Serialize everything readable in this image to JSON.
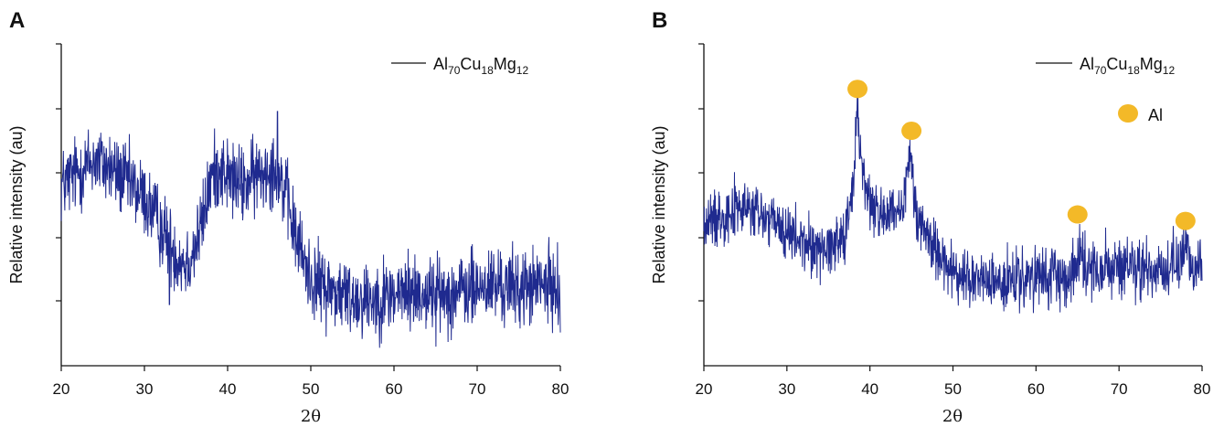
{
  "chart_data": [
    {
      "type": "line",
      "panel_label": "A",
      "xlabel": "2θ",
      "ylabel": "Relative intensity (au)",
      "xlim": [
        20,
        80
      ],
      "ylim": [
        0,
        100
      ],
      "x_ticks": [
        20,
        30,
        40,
        50,
        60,
        70,
        80
      ],
      "x_tick_labels": [
        "20",
        "30",
        "40",
        "50",
        "60",
        "70",
        "80"
      ],
      "y_tick_labels_shown": false,
      "legend": {
        "position": "top-right",
        "entries": [
          {
            "base": "Al",
            "parts": [
              [
                "70",
                "Cu"
              ],
              [
                "18",
                "Mg"
              ],
              [
                "12",
                ""
              ]
            ]
          }
        ]
      },
      "series": [
        {
          "name": "Al70Cu18Mg12",
          "color": "#1f2a8f",
          "x": [
            20,
            22,
            24,
            26,
            28,
            30,
            32,
            33,
            34,
            35,
            36,
            37,
            38,
            39,
            40,
            41,
            42,
            43,
            44,
            45,
            46,
            47,
            48,
            49,
            50,
            52,
            55,
            58,
            60,
            62,
            65,
            68,
            70,
            72,
            75,
            78,
            80
          ],
          "y": [
            56,
            60,
            64,
            61,
            57,
            52,
            43,
            38,
            34,
            32,
            36,
            45,
            58,
            62,
            59,
            57,
            56,
            58,
            60,
            62,
            61,
            53,
            42,
            34,
            27,
            24,
            21,
            21,
            22,
            23,
            22,
            23,
            24,
            25,
            24,
            25,
            24
          ]
        }
      ],
      "sharp_features": [
        {
          "x": 33.0,
          "y": 19
        },
        {
          "x": 46.0,
          "y": 79
        }
      ],
      "noise_amplitude": 6
    },
    {
      "type": "line",
      "panel_label": "B",
      "xlabel": "2θ",
      "ylabel": "Relative intensity (au)",
      "xlim": [
        20,
        80
      ],
      "ylim": [
        0,
        100
      ],
      "x_ticks": [
        20,
        30,
        40,
        50,
        60,
        70,
        80
      ],
      "x_tick_labels": [
        "20",
        "30",
        "40",
        "50",
        "60",
        "70",
        "80"
      ],
      "y_tick_labels_shown": false,
      "legend": {
        "position": "top-right",
        "entries": [
          {
            "base": "Al",
            "parts": [
              [
                "70",
                "Cu"
              ],
              [
                "18",
                "Mg"
              ],
              [
                "12",
                ""
              ]
            ]
          }
        ],
        "marker_label": "Al",
        "marker_color": "#f3b928"
      },
      "series": [
        {
          "name": "Al70Cu18Mg12",
          "color": "#1f2a8f",
          "x": [
            20,
            22,
            24,
            26,
            28,
            30,
            32,
            33,
            34,
            35,
            36,
            37,
            38,
            38.5,
            39,
            40,
            41,
            42,
            43,
            44,
            44.8,
            45.5,
            46,
            47,
            48,
            49,
            50,
            52,
            55,
            58,
            60,
            62,
            63,
            64,
            65,
            65.3,
            66,
            67,
            68,
            70,
            72,
            74,
            76,
            77,
            77.8,
            79,
            80
          ],
          "y": [
            43,
            47,
            49,
            48,
            45,
            41,
            38,
            37,
            36,
            37,
            39,
            42,
            55,
            80,
            62,
            50,
            48,
            47,
            46,
            47,
            67,
            50,
            45,
            40,
            36,
            33,
            28,
            27,
            26,
            26,
            27,
            27,
            28,
            29,
            30,
            40,
            31,
            30,
            30,
            30,
            30,
            30,
            30,
            31,
            37,
            31,
            31
          ]
        }
      ],
      "peak_markers": [
        {
          "x": 38.5,
          "y": 86
        },
        {
          "x": 45.0,
          "y": 73
        },
        {
          "x": 65.0,
          "y": 47
        },
        {
          "x": 78.0,
          "y": 45
        }
      ],
      "noise_amplitude": 4.5
    }
  ]
}
